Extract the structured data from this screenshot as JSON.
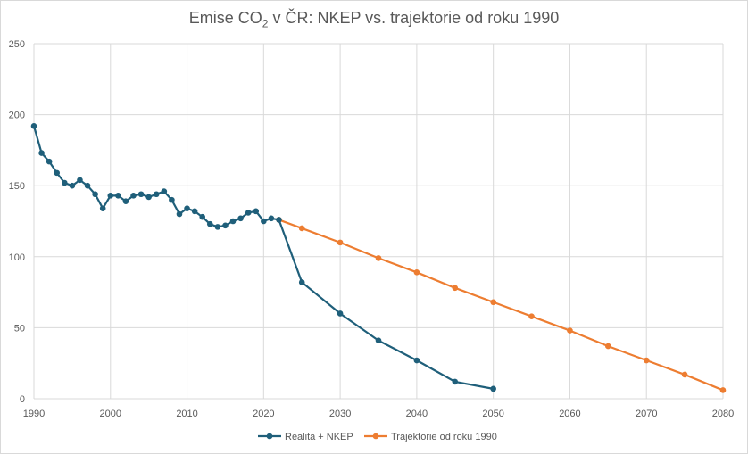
{
  "chart_data": {
    "type": "line",
    "title": "Emise CO",
    "title_subscript": "2",
    "title_rest": " v ČR: NKEP vs. trajektorie od roku 1990",
    "xlim": [
      1990,
      2080
    ],
    "ylim": [
      0,
      250
    ],
    "x_ticks": [
      1990,
      2000,
      2010,
      2020,
      2030,
      2040,
      2050,
      2060,
      2070,
      2080
    ],
    "y_ticks": [
      0,
      50,
      100,
      150,
      200,
      250
    ],
    "grid": true,
    "legend_position": "bottom",
    "series": [
      {
        "name": "Realita + NKEP",
        "color": "#1f5f7a",
        "x": [
          1990,
          1991,
          1992,
          1993,
          1994,
          1995,
          1996,
          1997,
          1998,
          1999,
          2000,
          2001,
          2002,
          2003,
          2004,
          2005,
          2006,
          2007,
          2008,
          2009,
          2010,
          2011,
          2012,
          2013,
          2014,
          2015,
          2016,
          2017,
          2018,
          2019,
          2020,
          2021,
          2022,
          2025,
          2030,
          2035,
          2040,
          2045,
          2050
        ],
        "y": [
          192,
          173,
          167,
          159,
          152,
          150,
          154,
          150,
          144,
          134,
          143,
          143,
          139,
          143,
          144,
          142,
          144,
          146,
          140,
          130,
          134,
          132,
          128,
          123,
          121,
          122,
          125,
          127,
          131,
          132,
          125,
          127,
          126,
          82,
          60,
          41,
          27,
          12,
          7
        ]
      },
      {
        "name": "Trajektorie od roku 1990",
        "color": "#ed7d31",
        "x": [
          2022,
          2025,
          2030,
          2035,
          2040,
          2045,
          2050,
          2055,
          2060,
          2065,
          2070,
          2075,
          2080
        ],
        "y": [
          126,
          120,
          110,
          99,
          89,
          78,
          68,
          58,
          48,
          37,
          27,
          17,
          6
        ]
      }
    ]
  }
}
